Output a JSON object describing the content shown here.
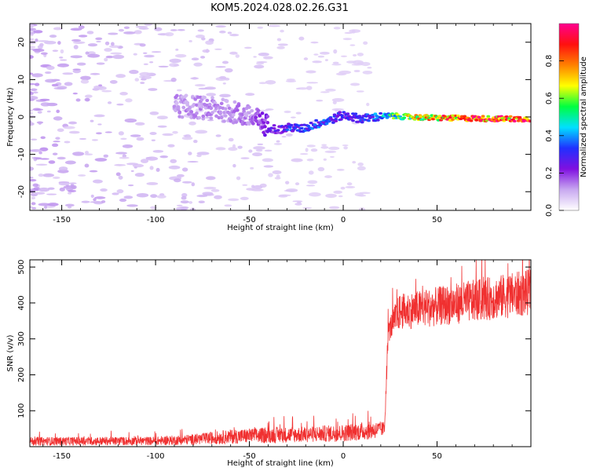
{
  "figure": {
    "title": "KOM5.2024.028.02.26.G31"
  },
  "chart_data": [
    {
      "type": "heatmap",
      "xlabel": "Height of straight line (km)",
      "ylabel": "Frequency (Hz)",
      "xlim": [
        -167,
        100
      ],
      "ylim": [
        -25,
        25
      ],
      "x_ticks": [
        -150,
        -100,
        -50,
        0,
        50
      ],
      "x_tick_labels": [
        "-150",
        "-100",
        "-50",
        "0",
        "50"
      ],
      "y_ticks": [
        -20,
        -10,
        0,
        10,
        20
      ],
      "y_tick_labels": [
        "-20",
        "-10",
        "0",
        "10",
        "20"
      ],
      "colorbar": {
        "label": "Normalized spectral amplitude",
        "range": [
          0,
          1
        ],
        "ticks": [
          0.0,
          0.2,
          0.4,
          0.6,
          0.8
        ],
        "tick_labels": [
          "0.0",
          "0.2",
          "0.4",
          "0.6",
          "0.8"
        ],
        "colormap": [
          "#ffffff",
          "#c8a8f0",
          "#8010e0",
          "#2030ff",
          "#00e0ff",
          "#00ff40",
          "#ffff00",
          "#ff8000",
          "#ff1010",
          "#ff0090"
        ]
      },
      "ridge": [
        {
          "x": -90,
          "f": 3,
          "amp": 0.14
        },
        {
          "x": -75,
          "f": 2.5,
          "amp": 0.14
        },
        {
          "x": -60,
          "f": 1.5,
          "amp": 0.15
        },
        {
          "x": -50,
          "f": 0,
          "amp": 0.16
        },
        {
          "x": -45,
          "f": -1,
          "amp": 0.2
        },
        {
          "x": -40,
          "f": -2.5,
          "amp": 0.25
        },
        {
          "x": -35,
          "f": -3.5,
          "amp": 0.28
        },
        {
          "x": -28,
          "f": -2.8,
          "amp": 0.35
        },
        {
          "x": -22,
          "f": -3.2,
          "amp": 0.33
        },
        {
          "x": -15,
          "f": -2,
          "amp": 0.38
        },
        {
          "x": -8,
          "f": -1,
          "amp": 0.35
        },
        {
          "x": 0,
          "f": 0.5,
          "amp": 0.32
        },
        {
          "x": 5,
          "f": 0,
          "amp": 0.3
        },
        {
          "x": 10,
          "f": -0.5,
          "amp": 0.34
        },
        {
          "x": 18,
          "f": 0,
          "amp": 0.4
        },
        {
          "x": 25,
          "f": 0.3,
          "amp": 0.55
        },
        {
          "x": 35,
          "f": 0,
          "amp": 0.7
        },
        {
          "x": 45,
          "f": -0.2,
          "amp": 0.8
        },
        {
          "x": 55,
          "f": -0.3,
          "amp": 0.9
        },
        {
          "x": 70,
          "f": -0.4,
          "amp": 0.95
        },
        {
          "x": 85,
          "f": -0.5,
          "amp": 0.98
        },
        {
          "x": 100,
          "f": -0.5,
          "amp": 0.95
        }
      ]
    },
    {
      "type": "line",
      "xlabel": "Height of straight line (km)",
      "ylabel": "SNR (v/v)",
      "xlim": [
        -167,
        100
      ],
      "ylim": [
        0,
        520
      ],
      "x_ticks": [
        -150,
        -100,
        -50,
        0,
        50
      ],
      "x_tick_labels": [
        "-150",
        "-100",
        "-50",
        "0",
        "50"
      ],
      "y_ticks": [
        100,
        200,
        300,
        400,
        500
      ],
      "y_tick_labels": [
        "100",
        "200",
        "300",
        "400",
        "500"
      ],
      "color": "#f03030",
      "envelope": [
        {
          "x": -167,
          "mean": 15,
          "spread": 12
        },
        {
          "x": -100,
          "mean": 16,
          "spread": 12
        },
        {
          "x": -80,
          "mean": 20,
          "spread": 15
        },
        {
          "x": -60,
          "mean": 28,
          "spread": 20
        },
        {
          "x": -40,
          "mean": 32,
          "spread": 22
        },
        {
          "x": -20,
          "mean": 34,
          "spread": 22
        },
        {
          "x": 0,
          "mean": 38,
          "spread": 24
        },
        {
          "x": 15,
          "mean": 45,
          "spread": 25
        },
        {
          "x": 22,
          "mean": 50,
          "spread": 20
        },
        {
          "x": 23,
          "mean": 200,
          "spread": 40
        },
        {
          "x": 24,
          "mean": 320,
          "spread": 30
        },
        {
          "x": 26,
          "mean": 340,
          "spread": 40
        },
        {
          "x": 30,
          "mean": 375,
          "spread": 50
        },
        {
          "x": 50,
          "mean": 390,
          "spread": 55
        },
        {
          "x": 75,
          "mean": 410,
          "spread": 60
        },
        {
          "x": 100,
          "mean": 430,
          "spread": 65
        }
      ]
    }
  ]
}
